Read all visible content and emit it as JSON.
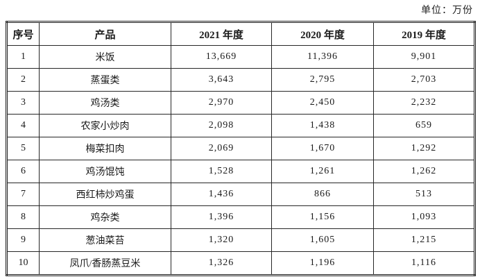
{
  "unit_label": "单位：万份",
  "table": {
    "headers": [
      "序号",
      "产品",
      "2021 年度",
      "2020 年度",
      "2019 年度"
    ],
    "rows": [
      [
        "1",
        "米饭",
        "13,669",
        "11,396",
        "9,901"
      ],
      [
        "2",
        "蒸蛋类",
        "3,643",
        "2,795",
        "2,703"
      ],
      [
        "3",
        "鸡汤类",
        "2,970",
        "2,450",
        "2,232"
      ],
      [
        "4",
        "农家小炒肉",
        "2,098",
        "1,438",
        "659"
      ],
      [
        "5",
        "梅菜扣肉",
        "2,069",
        "1,670",
        "1,292"
      ],
      [
        "6",
        "鸡汤馄饨",
        "1,528",
        "1,261",
        "1,262"
      ],
      [
        "7",
        "西红柿炒鸡蛋",
        "1,436",
        "866",
        "513"
      ],
      [
        "8",
        "鸡杂类",
        "1,396",
        "1,156",
        "1,093"
      ],
      [
        "9",
        "葱油菜苔",
        "1,320",
        "1,605",
        "1,215"
      ],
      [
        "10",
        "凤爪/香肠蒸豆米",
        "1,326",
        "1,196",
        "1,116"
      ]
    ]
  }
}
